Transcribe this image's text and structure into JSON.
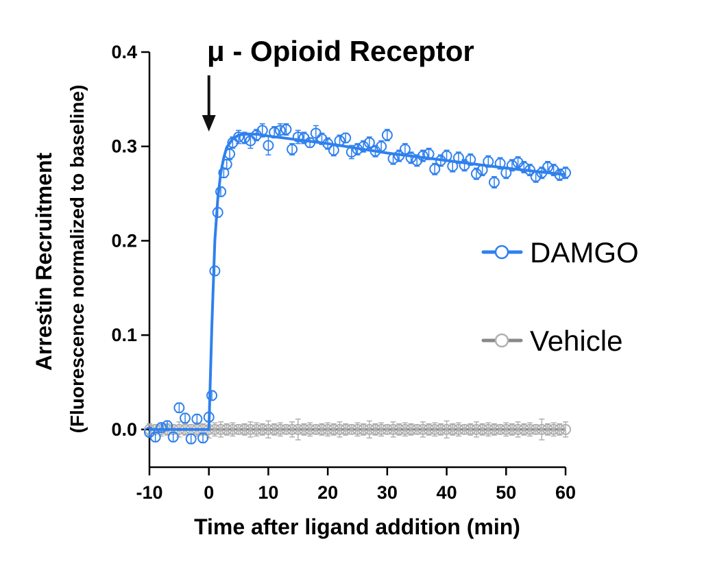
{
  "chart_data": {
    "type": "scatter",
    "title": "μ - Opioid Receptor",
    "xlabel": "Time after ligand addition (min)",
    "ylabel": "Arrestin Recruitment",
    "ylabel_sub": "(Fluorescence normalized to baseline)",
    "xlim": [
      -10,
      60
    ],
    "ylim": [
      -0.04,
      0.4
    ],
    "xticks": [
      -10,
      0,
      10,
      20,
      30,
      40,
      50,
      60
    ],
    "xtick_labels": [
      "-10",
      "0",
      "10",
      "20",
      "30",
      "40",
      "50",
      "60"
    ],
    "yticks": [
      0.0,
      0.1,
      0.2,
      0.3,
      0.4
    ],
    "ytick_labels": [
      "0.0",
      "0.1",
      "0.2",
      "0.3",
      "0.4"
    ],
    "annotation": {
      "label": "ligand addition arrow",
      "x": 0
    },
    "legend_position": "right",
    "series": [
      {
        "name": "DAMGO",
        "color": "#2f80ed",
        "marker": "open-circle",
        "fit_line": true,
        "x": [
          -10,
          -9,
          -8,
          -7,
          -6,
          -5,
          -4,
          -3,
          -2,
          -1,
          0,
          0.5,
          1,
          1.5,
          2,
          2.5,
          3,
          3.5,
          4,
          5,
          6,
          7,
          8,
          9,
          10,
          11,
          12,
          13,
          14,
          15,
          16,
          17,
          18,
          19,
          20,
          21,
          22,
          23,
          24,
          25,
          26,
          27,
          28,
          29,
          30,
          31,
          32,
          33,
          34,
          35,
          36,
          37,
          38,
          39,
          40,
          41,
          42,
          43,
          44,
          45,
          46,
          47,
          48,
          49,
          50,
          51,
          52,
          53,
          54,
          55,
          56,
          57,
          58,
          59,
          60
        ],
        "y": [
          -0.003,
          -0.008,
          0.002,
          0.004,
          -0.008,
          0.023,
          0.012,
          -0.01,
          0.011,
          -0.009,
          0.013,
          0.036,
          0.168,
          0.23,
          0.252,
          0.272,
          0.281,
          0.292,
          0.304,
          0.31,
          0.309,
          0.306,
          0.312,
          0.317,
          0.301,
          0.315,
          0.317,
          0.318,
          0.297,
          0.31,
          0.309,
          0.304,
          0.314,
          0.308,
          0.303,
          0.296,
          0.306,
          0.309,
          0.294,
          0.297,
          0.3,
          0.304,
          0.295,
          0.3,
          0.312,
          0.287,
          0.29,
          0.297,
          0.288,
          0.285,
          0.29,
          0.292,
          0.276,
          0.285,
          0.29,
          0.279,
          0.288,
          0.28,
          0.286,
          0.271,
          0.275,
          0.284,
          0.262,
          0.282,
          0.272,
          0.28,
          0.283,
          0.278,
          0.275,
          0.268,
          0.272,
          0.278,
          0.275,
          0.27,
          0.272
        ],
        "error": [
          0.005,
          0.005,
          0.005,
          0.005,
          0.005,
          0.005,
          0.005,
          0.005,
          0.005,
          0.005,
          0.005,
          0.005,
          0.005,
          0.005,
          0.005,
          0.005,
          0.005,
          0.006,
          0.006,
          0.007,
          0.006,
          0.008,
          0.006,
          0.007,
          0.01,
          0.006,
          0.007,
          0.006,
          0.006,
          0.007,
          0.006,
          0.005,
          0.008,
          0.006,
          0.006,
          0.006,
          0.006,
          0.005,
          0.007,
          0.006,
          0.006,
          0.006,
          0.006,
          0.006,
          0.006,
          0.006,
          0.006,
          0.006,
          0.006,
          0.006,
          0.006,
          0.006,
          0.006,
          0.006,
          0.006,
          0.006,
          0.006,
          0.006,
          0.006,
          0.006,
          0.006,
          0.006,
          0.006,
          0.006,
          0.006,
          0.006,
          0.006,
          0.006,
          0.006,
          0.006,
          0.006,
          0.006,
          0.006,
          0.006,
          0.006
        ],
        "fit": {
          "x": [
            -10,
            0,
            0.5,
            1,
            1.5,
            2,
            2.5,
            3,
            4,
            5,
            6,
            8,
            10,
            20,
            30,
            40,
            50,
            60
          ],
          "y": [
            0.0,
            0.0,
            0.11,
            0.2,
            0.245,
            0.272,
            0.288,
            0.299,
            0.308,
            0.312,
            0.313,
            0.313,
            0.311,
            0.303,
            0.293,
            0.285,
            0.277,
            0.27
          ]
        }
      },
      {
        "name": "Vehicle",
        "color": "#888888",
        "marker_color": "#b0b0b0",
        "marker": "open-circle",
        "fit_line": true,
        "x": [
          -10,
          -9,
          -8,
          -7,
          -6,
          -5,
          -4,
          -3,
          -2,
          -1,
          0,
          1,
          2,
          3,
          4,
          5,
          6,
          7,
          8,
          9,
          10,
          11,
          12,
          13,
          14,
          15,
          16,
          17,
          18,
          19,
          20,
          21,
          22,
          23,
          24,
          25,
          26,
          27,
          28,
          29,
          30,
          31,
          32,
          33,
          34,
          35,
          36,
          37,
          38,
          39,
          40,
          41,
          42,
          43,
          44,
          45,
          46,
          47,
          48,
          49,
          50,
          51,
          52,
          53,
          54,
          55,
          56,
          57,
          58,
          59,
          60
        ],
        "y": [
          0,
          0,
          0,
          0,
          0,
          0,
          0,
          0,
          0,
          0,
          0,
          0,
          0,
          0,
          0,
          0,
          0,
          0,
          0,
          0,
          0,
          0,
          0,
          0,
          0,
          0,
          0,
          0,
          0,
          0,
          0,
          0,
          0,
          0,
          0,
          0,
          0,
          0,
          0,
          0,
          0,
          0,
          0,
          0,
          0,
          0,
          0,
          0,
          0,
          0,
          0,
          0,
          0,
          0,
          0,
          0,
          0,
          0,
          0,
          0,
          0,
          0,
          0,
          0,
          0,
          0,
          0,
          0,
          0,
          0,
          0
        ],
        "error": [
          0.006,
          0.005,
          0.007,
          0.006,
          0.005,
          0.008,
          0.006,
          0.005,
          0.007,
          0.006,
          0.009,
          0.007,
          0.008,
          0.006,
          0.007,
          0.005,
          0.006,
          0.008,
          0.007,
          0.006,
          0.009,
          0.006,
          0.007,
          0.005,
          0.008,
          0.011,
          0.006,
          0.007,
          0.005,
          0.006,
          0.007,
          0.006,
          0.008,
          0.006,
          0.005,
          0.007,
          0.006,
          0.009,
          0.006,
          0.007,
          0.005,
          0.008,
          0.006,
          0.007,
          0.006,
          0.005,
          0.008,
          0.006,
          0.007,
          0.006,
          0.009,
          0.006,
          0.007,
          0.005,
          0.006,
          0.008,
          0.006,
          0.007,
          0.006,
          0.005,
          0.007,
          0.006,
          0.008,
          0.006,
          0.007,
          0.005,
          0.011,
          0.006,
          0.007,
          0.006,
          0.008
        ]
      }
    ]
  }
}
